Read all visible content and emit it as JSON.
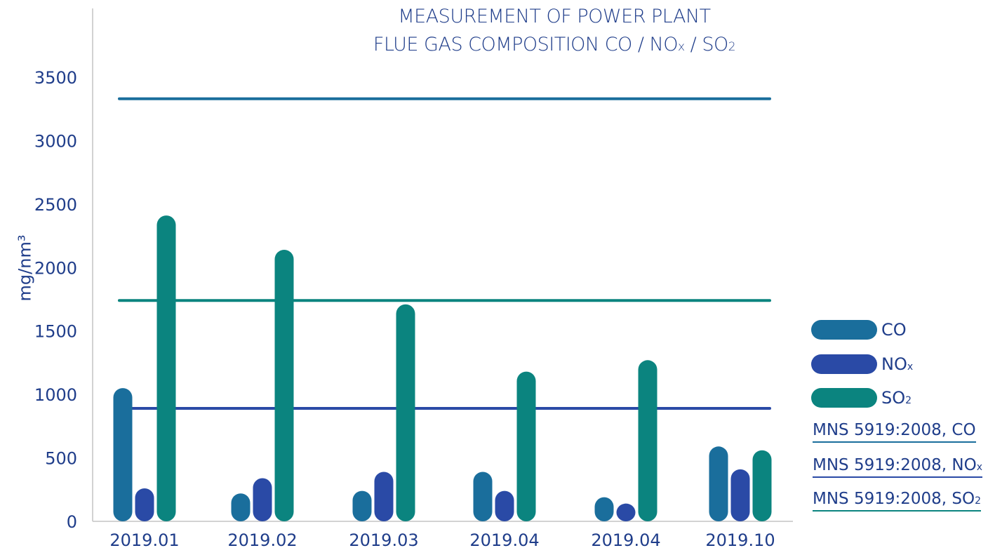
{
  "chart_data": {
    "type": "bar",
    "title_line1": "MEASUREMENT OF POWER PLANT",
    "title_line2_main": "FLUE GAS COMPOSITION CO / NO",
    "title_line2_sub1": "x",
    "title_line2_mid": " / SO",
    "title_line2_sub2": "2",
    "ylabel": "mg/nm³",
    "ylim": [
      0,
      3500
    ],
    "yticks": [
      0,
      500,
      1000,
      1500,
      2000,
      2500,
      3000,
      3500
    ],
    "categories": [
      "2019.01",
      "2019.02",
      "2019.03",
      "2019.04",
      "2019.04",
      "2019.10"
    ],
    "series": [
      {
        "name": "CO",
        "color": "#1a6e9c",
        "values": [
          1050,
          220,
          240,
          390,
          190,
          590
        ]
      },
      {
        "name": "NOx",
        "color": "#2a4aa6",
        "values": [
          260,
          340,
          390,
          240,
          140,
          410
        ]
      },
      {
        "name": "SO2",
        "color": "#0b847f",
        "values": [
          2410,
          2140,
          1710,
          1180,
          1270,
          560
        ]
      }
    ],
    "reference_lines": [
      {
        "name": "MNS 5919:2008, CO",
        "color": "#1a6e9c",
        "value": 3330
      },
      {
        "name": "MNS 5919:2008, NOx",
        "color": "#2a4aa6",
        "value": 890
      },
      {
        "name": "MNS 5919:2008, SO2",
        "color": "#0b847f",
        "value": 1740
      }
    ],
    "legend_position": "right",
    "grid": false
  },
  "legend": {
    "co": {
      "main": "CO",
      "sub": ""
    },
    "nox": {
      "main": "NO",
      "sub": "x"
    },
    "so2": {
      "main": "SO",
      "sub": "2"
    }
  },
  "standards": {
    "co": {
      "main": "MNS 5919:2008, CO",
      "sub": ""
    },
    "nox": {
      "main": "MNS 5919:2008, NO",
      "sub": "x"
    },
    "so2": {
      "main": "MNS 5919:2008, SO",
      "sub": "2"
    }
  }
}
